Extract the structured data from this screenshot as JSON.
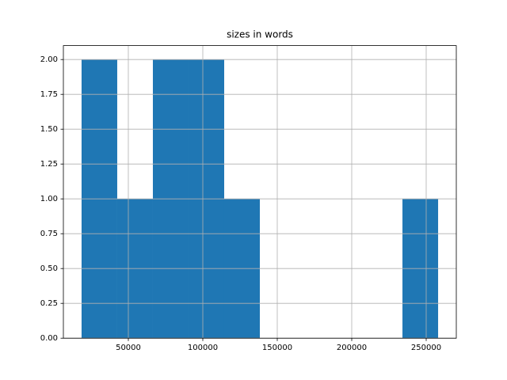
{
  "chart_data": {
    "type": "histogram",
    "title": "sizes in words",
    "bins": [
      18600,
      42540,
      66480,
      90420,
      114360,
      138300,
      162240,
      186180,
      210120,
      234060,
      258000
    ],
    "values": [
      2,
      1,
      2,
      2,
      1,
      0,
      0,
      0,
      0,
      1
    ],
    "color": "#1f77b4",
    "xlim": [
      6383,
      270213
    ],
    "xticks": [
      50000,
      100000,
      150000,
      200000,
      250000
    ],
    "ylim": [
      0,
      2.1
    ],
    "yticks": [
      {
        "value": 0,
        "label": "0.00"
      },
      {
        "value": 0.25,
        "label": "0.25"
      },
      {
        "value": 0.5,
        "label": "0.50"
      },
      {
        "value": 0.75,
        "label": "0.75"
      },
      {
        "value": 1,
        "label": "1.00"
      },
      {
        "value": 1.25,
        "label": "1.25"
      },
      {
        "value": 1.5,
        "label": "1.50"
      },
      {
        "value": 1.75,
        "label": "1.75"
      },
      {
        "value": 2,
        "label": "2.00"
      }
    ],
    "grid": true
  }
}
